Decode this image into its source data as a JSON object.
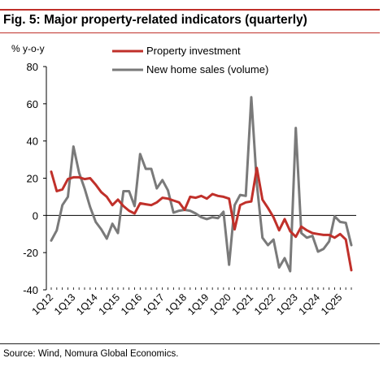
{
  "title": "Fig. 5: Major property-related indicators (quarterly)",
  "source": "Source: Wind, Nomura Global Economics.",
  "chart_data": {
    "type": "line",
    "ylabel": "% y-o-y",
    "ylim": [
      -40,
      80
    ],
    "yticks": [
      80,
      60,
      40,
      20,
      0,
      -20,
      -40
    ],
    "xtick_labels": [
      "1Q12",
      "1Q13",
      "1Q14",
      "1Q15",
      "1Q16",
      "1Q17",
      "1Q18",
      "1Q19",
      "1Q20",
      "1Q21",
      "1Q22",
      "1Q23",
      "1Q24",
      "1Q25"
    ],
    "x": [
      "1Q12",
      "2Q12",
      "3Q12",
      "4Q12",
      "1Q13",
      "2Q13",
      "3Q13",
      "4Q13",
      "1Q14",
      "2Q14",
      "3Q14",
      "4Q14",
      "1Q15",
      "2Q15",
      "3Q15",
      "4Q15",
      "1Q16",
      "2Q16",
      "3Q16",
      "4Q16",
      "1Q17",
      "2Q17",
      "3Q17",
      "4Q17",
      "1Q18",
      "2Q18",
      "3Q18",
      "4Q18",
      "1Q19",
      "2Q19",
      "3Q19",
      "4Q19",
      "1Q20",
      "2Q20",
      "3Q20",
      "4Q20",
      "1Q21",
      "2Q21",
      "3Q21",
      "4Q21",
      "1Q22",
      "2Q22",
      "3Q22",
      "4Q22",
      "1Q23",
      "2Q23",
      "3Q23",
      "4Q23",
      "1Q24",
      "2Q24",
      "3Q24",
      "4Q24",
      "1Q25",
      "2Q25",
      "3Q25"
    ],
    "series": [
      {
        "name": "Property investment",
        "color": "#c0302a",
        "values": [
          23.5,
          13,
          14,
          19.5,
          20.5,
          20.5,
          19.5,
          20,
          16.5,
          12.5,
          10,
          5.5,
          8.5,
          5,
          2.5,
          1,
          6.5,
          6,
          5.5,
          7,
          9.5,
          9,
          8,
          7,
          3,
          10,
          9.5,
          10.5,
          9,
          11.5,
          10.5,
          10,
          9,
          -7.5,
          5.5,
          7,
          7.5,
          25.5,
          8.5,
          4,
          -1,
          -8,
          -2,
          -8.5,
          -11.5,
          -6,
          -8,
          -9.5,
          -10,
          -10.5,
          -10.5,
          -12,
          -10,
          -13,
          -29.5
        ]
      },
      {
        "name": "New home sales (volume)",
        "color": "#7a7a7a",
        "values": [
          -13.5,
          -8,
          5.5,
          10,
          37,
          23,
          14.5,
          4.5,
          -3.5,
          -7.5,
          -12.5,
          -4.5,
          -9.5,
          13,
          13,
          5,
          33,
          25,
          25,
          14.5,
          19,
          13.5,
          1.5,
          2.5,
          3,
          2.5,
          1,
          -1,
          -2,
          -1,
          -1.5,
          2,
          -26.5,
          5.5,
          11,
          10.5,
          63.5,
          17,
          -12,
          -16,
          -13,
          -28,
          -23,
          -30,
          47,
          -9.5,
          -12,
          -11,
          -19.5,
          -18,
          -14,
          -0.5,
          -3.5,
          -4,
          -16
        ]
      }
    ]
  }
}
